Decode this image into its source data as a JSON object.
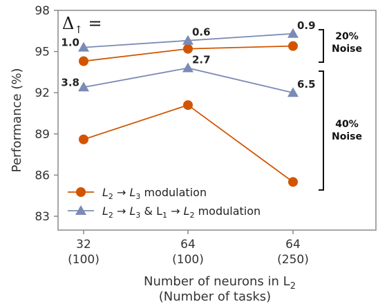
{
  "chart_data": {
    "type": "line",
    "x_categories": [
      [
        "32",
        "(100)"
      ],
      [
        "64",
        "(100)"
      ],
      [
        "64",
        "(250)"
      ]
    ],
    "xlabel": [
      "Number of neurons in L",
      "2",
      "(Number of tasks)"
    ],
    "ylabel": "Performance (%)",
    "ylim": [
      83,
      98
    ],
    "yticks": [
      83,
      86,
      89,
      92,
      95,
      98
    ],
    "grid": false,
    "legend_position": "bottom-left",
    "series": [
      {
        "legend": [
          "L",
          "2",
          " → L",
          "3",
          " modulation"
        ],
        "color": "#d35400",
        "marker": "circle",
        "groups": [
          {
            "noise": "20%",
            "values": [
              94.3,
              95.2,
              95.4
            ]
          },
          {
            "noise": "40%",
            "values": [
              88.6,
              91.1,
              85.5
            ]
          }
        ]
      },
      {
        "legend": [
          "L",
          "2",
          " → L",
          "3",
          " & L",
          "1",
          " → L",
          "2",
          " modulation"
        ],
        "color": "#7a8bb5",
        "marker": "triangle",
        "groups": [
          {
            "noise": "20%",
            "values": [
              95.3,
              95.8,
              96.3
            ]
          },
          {
            "noise": "40%",
            "values": [
              92.4,
              93.8,
              92.0
            ]
          }
        ]
      }
    ],
    "delta_title": [
      "Δ",
      "↑",
      " ="
    ],
    "annotations": [
      {
        "text": "1.0",
        "group": "20%",
        "x_index": 0
      },
      {
        "text": "0.6",
        "group": "20%",
        "x_index": 1
      },
      {
        "text": "0.9",
        "group": "20%",
        "x_index": 2
      },
      {
        "text": "3.8",
        "group": "40%",
        "x_index": 0
      },
      {
        "text": "2.7",
        "group": "40%",
        "x_index": 1
      },
      {
        "text": "6.5",
        "group": "40%",
        "x_index": 2
      }
    ],
    "noise_brackets": [
      {
        "line1": "20%",
        "line2": "Noise"
      },
      {
        "line1": "40%",
        "line2": "Noise"
      }
    ]
  }
}
